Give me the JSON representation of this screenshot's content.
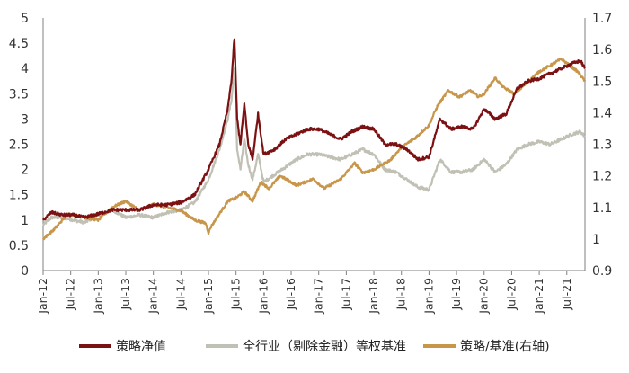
{
  "chart_data": {
    "type": "line",
    "title": "",
    "xlabel": "",
    "ylabel": "",
    "y_left": {
      "range": [
        0,
        5
      ],
      "ticks": [
        "0",
        "0.5",
        "1",
        "1.5",
        "2",
        "2.5",
        "3",
        "3.5",
        "4",
        "4.5",
        "5"
      ]
    },
    "y_right": {
      "range": [
        0.9,
        1.7
      ],
      "ticks": [
        "0.9",
        "1",
        "1.1",
        "1.2",
        "1.3",
        "1.4",
        "1.5",
        "1.6",
        "1.7"
      ]
    },
    "x_ticks": [
      "Jan-12",
      "Jul-12",
      "Jan-13",
      "Jul-13",
      "Jan-14",
      "Jul-14",
      "Jan-15",
      "Jul-15",
      "Jan-16",
      "Jul-16",
      "Jan-17",
      "Jul-17",
      "Jan-18",
      "Jul-18",
      "Jan-19",
      "Jul-19",
      "Jan-20",
      "Jul-20",
      "Jan-21",
      "Jul-21"
    ],
    "x_range": [
      2012.0,
      2021.83
    ],
    "grid": false,
    "legend_position": "bottom",
    "series": [
      {
        "name": "策略净值",
        "axis": "left",
        "color": "#7b1113",
        "points": [
          [
            2012.0,
            1.0
          ],
          [
            2012.15,
            1.15
          ],
          [
            2012.35,
            1.1
          ],
          [
            2012.55,
            1.1
          ],
          [
            2012.75,
            1.05
          ],
          [
            2013.0,
            1.12
          ],
          [
            2013.25,
            1.2
          ],
          [
            2013.5,
            1.2
          ],
          [
            2013.75,
            1.2
          ],
          [
            2014.0,
            1.3
          ],
          [
            2014.25,
            1.3
          ],
          [
            2014.5,
            1.35
          ],
          [
            2014.75,
            1.5
          ],
          [
            2015.0,
            2.0
          ],
          [
            2015.2,
            2.5
          ],
          [
            2015.35,
            3.2
          ],
          [
            2015.42,
            3.8
          ],
          [
            2015.47,
            4.6
          ],
          [
            2015.52,
            3.0
          ],
          [
            2015.58,
            2.5
          ],
          [
            2015.65,
            3.3
          ],
          [
            2015.72,
            2.5
          ],
          [
            2015.8,
            2.2
          ],
          [
            2015.9,
            3.1
          ],
          [
            2016.0,
            2.3
          ],
          [
            2016.2,
            2.4
          ],
          [
            2016.4,
            2.6
          ],
          [
            2016.6,
            2.7
          ],
          [
            2016.8,
            2.8
          ],
          [
            2017.0,
            2.8
          ],
          [
            2017.2,
            2.7
          ],
          [
            2017.4,
            2.6
          ],
          [
            2017.6,
            2.75
          ],
          [
            2017.8,
            2.85
          ],
          [
            2018.0,
            2.8
          ],
          [
            2018.2,
            2.5
          ],
          [
            2018.4,
            2.5
          ],
          [
            2018.6,
            2.4
          ],
          [
            2018.8,
            2.2
          ],
          [
            2019.0,
            2.25
          ],
          [
            2019.2,
            3.0
          ],
          [
            2019.4,
            2.8
          ],
          [
            2019.6,
            2.85
          ],
          [
            2019.8,
            2.8
          ],
          [
            2020.0,
            3.2
          ],
          [
            2020.2,
            3.0
          ],
          [
            2020.4,
            3.1
          ],
          [
            2020.6,
            3.6
          ],
          [
            2020.8,
            3.75
          ],
          [
            2021.0,
            3.8
          ],
          [
            2021.2,
            3.9
          ],
          [
            2021.4,
            4.0
          ],
          [
            2021.6,
            4.1
          ],
          [
            2021.75,
            4.15
          ],
          [
            2021.83,
            4.0
          ]
        ]
      },
      {
        "name": "全行业（剔除金融）等权基准",
        "axis": "left",
        "color": "#c0c0b4",
        "points": [
          [
            2012.0,
            0.9
          ],
          [
            2012.15,
            1.05
          ],
          [
            2012.35,
            1.05
          ],
          [
            2012.55,
            1.0
          ],
          [
            2012.75,
            0.95
          ],
          [
            2013.0,
            1.1
          ],
          [
            2013.25,
            1.2
          ],
          [
            2013.5,
            1.05
          ],
          [
            2013.75,
            1.1
          ],
          [
            2014.0,
            1.05
          ],
          [
            2014.25,
            1.15
          ],
          [
            2014.5,
            1.2
          ],
          [
            2014.75,
            1.35
          ],
          [
            2015.0,
            1.8
          ],
          [
            2015.2,
            2.4
          ],
          [
            2015.35,
            3.0
          ],
          [
            2015.42,
            3.4
          ],
          [
            2015.47,
            4.0
          ],
          [
            2015.52,
            2.4
          ],
          [
            2015.58,
            2.0
          ],
          [
            2015.65,
            2.6
          ],
          [
            2015.72,
            2.1
          ],
          [
            2015.8,
            1.8
          ],
          [
            2015.9,
            2.3
          ],
          [
            2016.0,
            1.75
          ],
          [
            2016.2,
            1.9
          ],
          [
            2016.4,
            2.05
          ],
          [
            2016.6,
            2.2
          ],
          [
            2016.8,
            2.3
          ],
          [
            2017.0,
            2.3
          ],
          [
            2017.2,
            2.25
          ],
          [
            2017.4,
            2.2
          ],
          [
            2017.6,
            2.3
          ],
          [
            2017.8,
            2.4
          ],
          [
            2018.0,
            2.3
          ],
          [
            2018.2,
            2.0
          ],
          [
            2018.4,
            1.95
          ],
          [
            2018.6,
            1.8
          ],
          [
            2018.8,
            1.65
          ],
          [
            2019.0,
            1.6
          ],
          [
            2019.2,
            2.2
          ],
          [
            2019.4,
            1.95
          ],
          [
            2019.6,
            1.95
          ],
          [
            2019.8,
            2.0
          ],
          [
            2020.0,
            2.2
          ],
          [
            2020.2,
            1.95
          ],
          [
            2020.4,
            2.1
          ],
          [
            2020.6,
            2.4
          ],
          [
            2020.8,
            2.5
          ],
          [
            2021.0,
            2.55
          ],
          [
            2021.2,
            2.5
          ],
          [
            2021.4,
            2.6
          ],
          [
            2021.6,
            2.7
          ],
          [
            2021.75,
            2.75
          ],
          [
            2021.83,
            2.65
          ]
        ]
      },
      {
        "name": "策略/基准(右轴)",
        "axis": "right",
        "color": "#c8964b",
        "points": [
          [
            2012.0,
            1.0
          ],
          [
            2012.2,
            1.03
          ],
          [
            2012.45,
            1.08
          ],
          [
            2012.7,
            1.07
          ],
          [
            2013.0,
            1.06
          ],
          [
            2013.25,
            1.1
          ],
          [
            2013.5,
            1.12
          ],
          [
            2013.75,
            1.09
          ],
          [
            2014.0,
            1.11
          ],
          [
            2014.25,
            1.1
          ],
          [
            2014.5,
            1.09
          ],
          [
            2014.75,
            1.06
          ],
          [
            2014.95,
            1.05
          ],
          [
            2015.0,
            1.02
          ],
          [
            2015.05,
            1.04
          ],
          [
            2015.2,
            1.08
          ],
          [
            2015.35,
            1.12
          ],
          [
            2015.5,
            1.13
          ],
          [
            2015.65,
            1.15
          ],
          [
            2015.8,
            1.12
          ],
          [
            2015.95,
            1.18
          ],
          [
            2016.1,
            1.16
          ],
          [
            2016.3,
            1.2
          ],
          [
            2016.6,
            1.17
          ],
          [
            2016.9,
            1.19
          ],
          [
            2017.1,
            1.16
          ],
          [
            2017.4,
            1.19
          ],
          [
            2017.65,
            1.24
          ],
          [
            2017.8,
            1.21
          ],
          [
            2018.0,
            1.22
          ],
          [
            2018.3,
            1.25
          ],
          [
            2018.5,
            1.29
          ],
          [
            2018.75,
            1.32
          ],
          [
            2019.0,
            1.36
          ],
          [
            2019.15,
            1.42
          ],
          [
            2019.35,
            1.47
          ],
          [
            2019.55,
            1.45
          ],
          [
            2019.75,
            1.47
          ],
          [
            2019.9,
            1.45
          ],
          [
            2020.0,
            1.46
          ],
          [
            2020.2,
            1.51
          ],
          [
            2020.35,
            1.48
          ],
          [
            2020.55,
            1.46
          ],
          [
            2020.75,
            1.49
          ],
          [
            2021.0,
            1.53
          ],
          [
            2021.2,
            1.55
          ],
          [
            2021.4,
            1.57
          ],
          [
            2021.55,
            1.55
          ],
          [
            2021.7,
            1.53
          ],
          [
            2021.83,
            1.5
          ]
        ]
      }
    ]
  }
}
